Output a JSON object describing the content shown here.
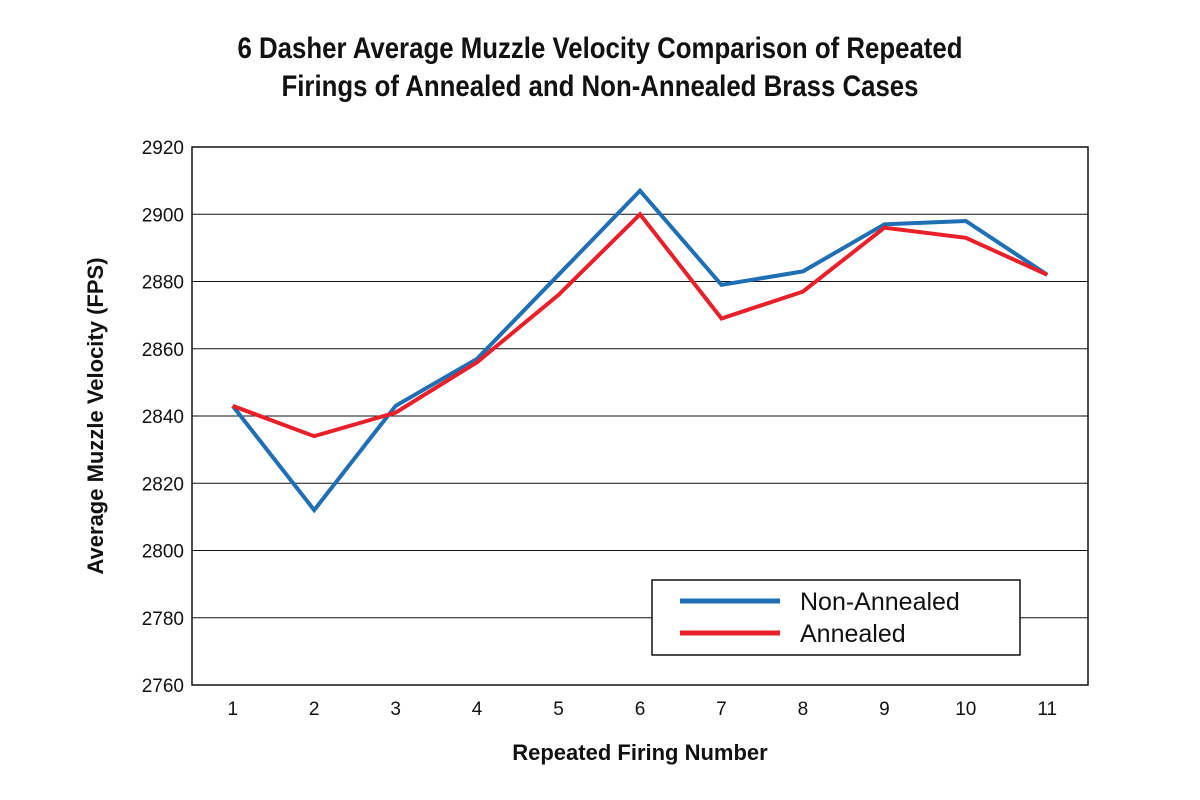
{
  "chart_data": {
    "type": "line",
    "title_lines": [
      "6 Dasher Average Muzzle Velocity Comparison of Repeated",
      "Firings of Annealed and Non-Annealed Brass Cases"
    ],
    "xlabel": "Repeated Firing Number",
    "ylabel": "Average Muzzle Velocity (FPS)",
    "x": [
      1,
      2,
      3,
      4,
      5,
      6,
      7,
      8,
      9,
      10,
      11
    ],
    "ylim": [
      2760,
      2920
    ],
    "yticks": [
      2760,
      2780,
      2800,
      2820,
      2840,
      2860,
      2880,
      2900,
      2920
    ],
    "grid": "horizontal",
    "legend_position": "bottom-right",
    "series": [
      {
        "name": "Non-Annealed",
        "color": "#1f6fb4",
        "values": [
          2843,
          2812,
          2843,
          2857,
          2882,
          2907,
          2879,
          2883,
          2897,
          2898,
          2882
        ]
      },
      {
        "name": "Annealed",
        "color": "#e8202a",
        "values": [
          2843,
          2834,
          2841,
          2856,
          2876,
          2900,
          2869,
          2877,
          2896,
          2893,
          2882
        ]
      }
    ]
  }
}
